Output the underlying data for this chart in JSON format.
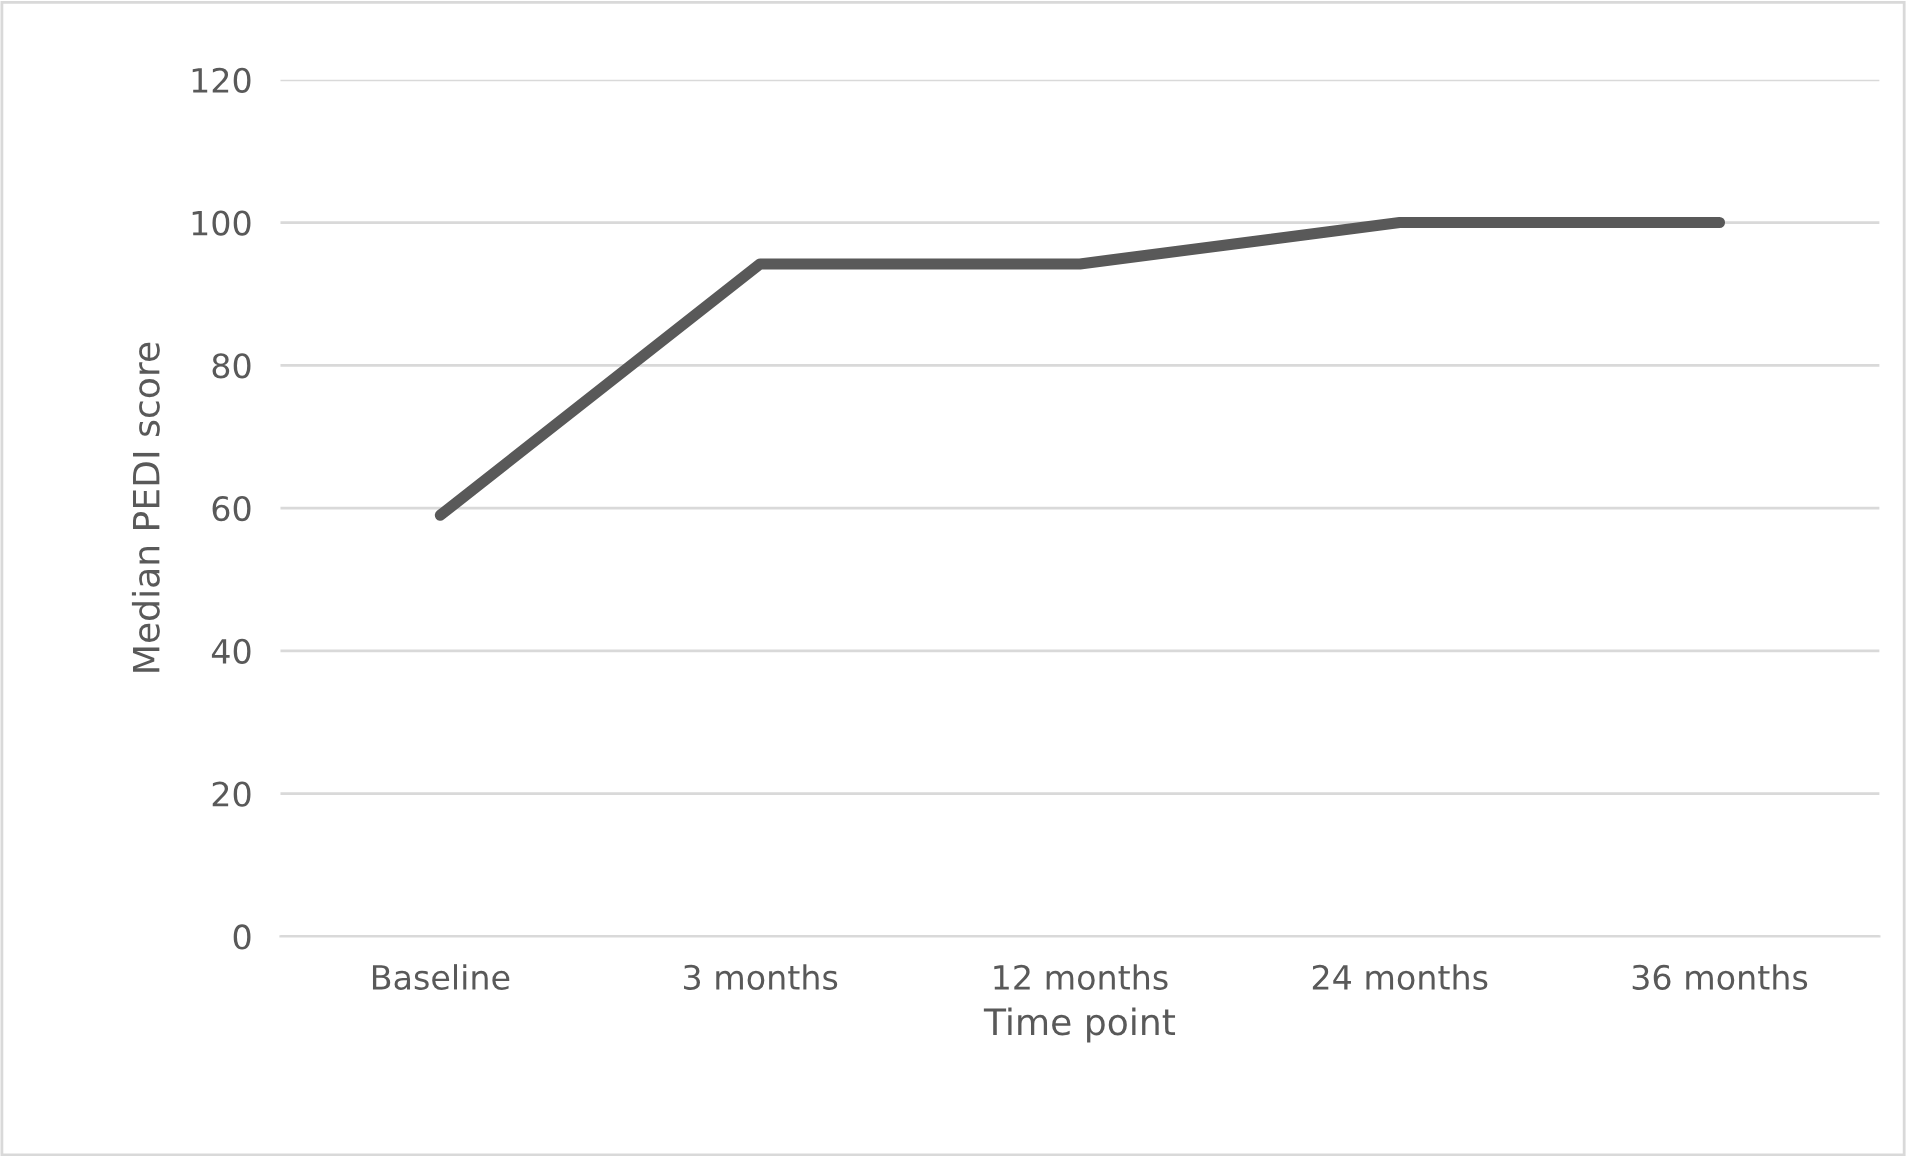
{
  "chart_data": {
    "type": "line",
    "xlabel": "Time point",
    "ylabel": "Median PEDI score",
    "categories": [
      "Baseline",
      "3 months",
      "12 months",
      "24 months",
      "36 months"
    ],
    "series": [
      {
        "color": "#595959",
        "values": [
          59,
          94.2,
          94.2,
          100,
          100
        ]
      }
    ],
    "ylim": [
      0,
      120
    ],
    "yticks": [
      0,
      20,
      40,
      60,
      80,
      100,
      120
    ],
    "grid": "y",
    "marker": "none",
    "line_style": "solid",
    "legend": false
  }
}
